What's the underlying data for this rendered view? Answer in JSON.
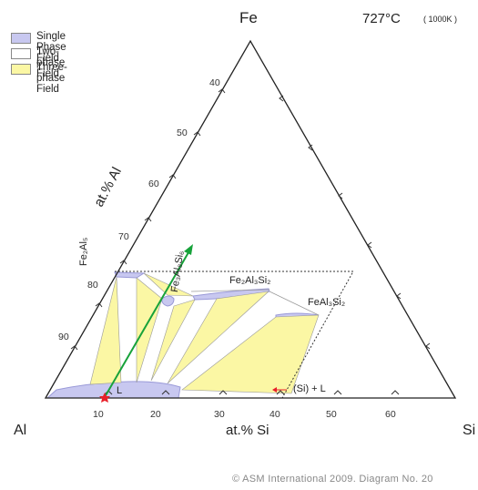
{
  "vertices": {
    "top": "Fe",
    "left": "Al",
    "right": "Si"
  },
  "temperature": {
    "celsius": "727°C",
    "kelvin": "( 1000K )"
  },
  "legend": [
    {
      "label": "Single Phase Field",
      "color": "#c8c8f0"
    },
    {
      "label": "Two-phase Field",
      "color": "#ffffff"
    },
    {
      "label": "Three-phase Field",
      "color": "#fbf7a4"
    }
  ],
  "axes": {
    "al_label": "at.% Al",
    "si_label": "at.% Si",
    "al_ticks": [
      "40",
      "50",
      "60",
      "70",
      "80",
      "90"
    ],
    "si_ticks": [
      "10",
      "20",
      "30",
      "40",
      "50",
      "60"
    ]
  },
  "phases": {
    "fe2al5": "Fe₂Al₅",
    "fe3al8si6": "Fe₃Al₈Si₆",
    "fe2al3si2": "Fe₂Al₃Si₂",
    "feal3si2": "FeAl₃Si₂",
    "liquid": "L",
    "si_liquid": "(Si) + L"
  },
  "colors": {
    "single_phase": "#c8c8f0",
    "three_phase": "#fbf7a4",
    "arrow": "#17a23a",
    "marker": "#e8202a"
  },
  "footer": "© ASM International 2009.   Diagram No. 20"
}
